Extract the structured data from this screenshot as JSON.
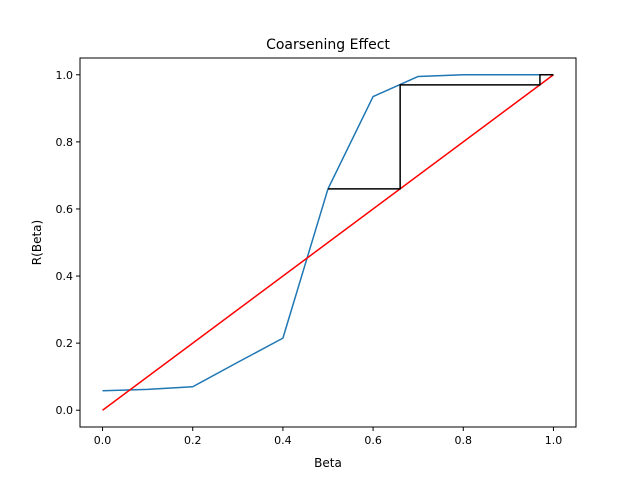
{
  "chart_data": {
    "type": "line",
    "title": "Coarsening Effect",
    "xlabel": "Beta",
    "ylabel": "R(Beta)",
    "xlim": [
      -0.05,
      1.05
    ],
    "ylim": [
      -0.05,
      1.05
    ],
    "xticks": [
      0.0,
      0.2,
      0.4,
      0.6,
      0.8,
      1.0
    ],
    "xtick_labels": [
      "0.0",
      "0.2",
      "0.4",
      "0.6",
      "0.8",
      "1.0"
    ],
    "yticks": [
      0.0,
      0.2,
      0.4,
      0.6,
      0.8,
      1.0
    ],
    "ytick_labels": [
      "0.0",
      "0.2",
      "0.4",
      "0.6",
      "0.8",
      "1.0"
    ],
    "grid": false,
    "series": [
      {
        "color": "#1f77b4",
        "x": [
          0.0,
          0.1,
          0.2,
          0.3,
          0.4,
          0.5,
          0.6,
          0.7,
          0.8,
          0.9,
          1.0
        ],
        "y": [
          0.058,
          0.062,
          0.07,
          0.143,
          0.215,
          0.66,
          0.935,
          0.995,
          1.0,
          1.0,
          1.0
        ]
      },
      {
        "color": "#ff0000",
        "x": [
          0.0,
          1.0
        ],
        "y": [
          0.0,
          1.0
        ]
      },
      {
        "color": "#000000",
        "x": [
          0.5,
          0.66,
          0.66,
          0.97,
          0.97,
          1.0,
          1.0
        ],
        "y": [
          0.66,
          0.66,
          0.97,
          0.97,
          1.0,
          1.0,
          1.0
        ]
      }
    ]
  }
}
